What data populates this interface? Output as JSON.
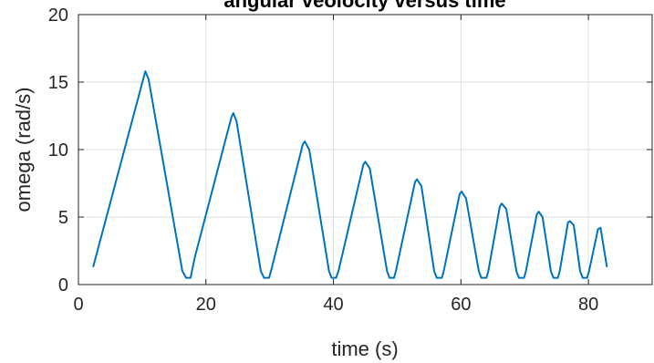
{
  "chart_data": {
    "type": "line",
    "title": "angular veolocity versus time",
    "xlabel": "time (s)",
    "ylabel": "omega (rad/s)",
    "xlim": [
      0,
      90
    ],
    "ylim": [
      0,
      20
    ],
    "xticks": [
      0,
      20,
      40,
      60,
      80
    ],
    "yticks": [
      0,
      5,
      10,
      15,
      20
    ],
    "grid": true,
    "line_color": "#0072BD",
    "series": [
      {
        "x": [
          2.3,
          10.2,
          10.5,
          11.0,
          16.3,
          16.9,
          17.6,
          17.8,
          18.3,
          24.0,
          24.3,
          24.8,
          28.6,
          29.1,
          29.9,
          30.2,
          35.2,
          35.5,
          36.2,
          39.3,
          39.7,
          40.4,
          40.8,
          44.7,
          45.0,
          45.7,
          48.4,
          48.8,
          49.5,
          49.8,
          52.8,
          53.1,
          53.8,
          55.8,
          56.2,
          57.0,
          57.3,
          59.8,
          60.1,
          60.8,
          62.8,
          63.2,
          64.0,
          64.3,
          66.1,
          66.4,
          67.1,
          68.7,
          69.1,
          69.9,
          70.2,
          71.9,
          72.2,
          72.8,
          74.1,
          74.5,
          75.2,
          75.5,
          76.8,
          77.1,
          77.7,
          78.7,
          79.1,
          79.8,
          80.1,
          81.5,
          81.9,
          82.9
        ],
        "y": [
          1.3,
          15.3,
          15.8,
          15.2,
          1.0,
          0.5,
          0.5,
          1.0,
          2.1,
          12.4,
          12.7,
          12.1,
          1.0,
          0.5,
          0.5,
          1.0,
          10.4,
          10.6,
          10.0,
          1.0,
          0.5,
          0.5,
          1.0,
          8.9,
          9.1,
          8.6,
          1.0,
          0.5,
          0.5,
          1.0,
          7.6,
          7.8,
          7.3,
          1.0,
          0.5,
          0.5,
          1.0,
          6.7,
          6.9,
          6.4,
          1.0,
          0.5,
          0.5,
          1.0,
          5.8,
          6.0,
          5.6,
          1.0,
          0.5,
          0.5,
          1.0,
          5.2,
          5.4,
          5.0,
          1.0,
          0.5,
          0.5,
          1.0,
          4.6,
          4.7,
          4.4,
          1.0,
          0.5,
          0.5,
          1.0,
          4.1,
          4.2,
          1.3
        ]
      }
    ]
  }
}
